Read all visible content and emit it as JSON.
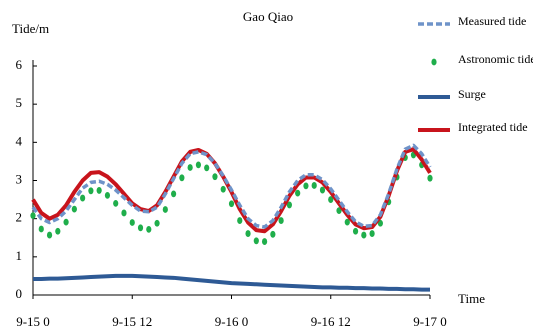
{
  "chart_data": {
    "type": "line",
    "title": "Gao Qiao",
    "y_label": "Tide/m",
    "x_label": "Time",
    "x": [
      0,
      1,
      2,
      3,
      4,
      5,
      6,
      7,
      8,
      9,
      10,
      11,
      12,
      13,
      14,
      15,
      16,
      17,
      18,
      19,
      20,
      21,
      22,
      23,
      24,
      25,
      26,
      27,
      28,
      29,
      30,
      31,
      32,
      33,
      34,
      35,
      36,
      37,
      38,
      39,
      40,
      41,
      42,
      43,
      44,
      45,
      46,
      47,
      48
    ],
    "xlim": [
      0,
      48
    ],
    "xticks": [
      {
        "value": 0,
        "label": "9-15 0"
      },
      {
        "value": 12,
        "label": "9-15 12"
      },
      {
        "value": 24,
        "label": "9-16 0"
      },
      {
        "value": 36,
        "label": "9-16 12"
      },
      {
        "value": 48,
        "label": "9-17 0"
      }
    ],
    "ylim": [
      0,
      6
    ],
    "yticks": [
      0,
      1,
      2,
      3,
      4,
      5,
      6
    ],
    "grid": false,
    "legend": "top-right",
    "series": [
      {
        "name": "Measured tide",
        "color": "#6f93c9",
        "style": "dashed",
        "values": [
          2.3,
          2.0,
          1.9,
          2.0,
          2.2,
          2.5,
          2.8,
          2.95,
          2.98,
          2.9,
          2.75,
          2.55,
          2.35,
          2.2,
          2.18,
          2.3,
          2.65,
          3.05,
          3.45,
          3.7,
          3.75,
          3.68,
          3.45,
          3.12,
          2.75,
          2.35,
          2.0,
          1.82,
          1.78,
          1.95,
          2.3,
          2.7,
          3.0,
          3.15,
          3.15,
          3.02,
          2.78,
          2.48,
          2.18,
          1.92,
          1.8,
          1.82,
          2.1,
          2.65,
          3.3,
          3.82,
          3.92,
          3.7,
          3.35
        ]
      },
      {
        "name": "Astronomic tide",
        "color": "#1fae4b",
        "style": "dots",
        "values": [
          2.08,
          1.73,
          1.57,
          1.67,
          1.91,
          2.25,
          2.54,
          2.73,
          2.74,
          2.61,
          2.4,
          2.15,
          1.9,
          1.76,
          1.72,
          1.88,
          2.24,
          2.65,
          3.07,
          3.34,
          3.41,
          3.33,
          3.1,
          2.77,
          2.39,
          1.95,
          1.61,
          1.42,
          1.4,
          1.59,
          1.95,
          2.36,
          2.67,
          2.86,
          2.87,
          2.75,
          2.5,
          2.21,
          1.91,
          1.67,
          1.57,
          1.61,
          1.88,
          2.44,
          3.09,
          3.6,
          3.67,
          3.41,
          3.06
        ]
      },
      {
        "name": "Surge",
        "color": "#2e5a95",
        "style": "solid",
        "values": [
          0.42,
          0.42,
          0.43,
          0.43,
          0.44,
          0.45,
          0.46,
          0.47,
          0.48,
          0.49,
          0.5,
          0.5,
          0.5,
          0.49,
          0.48,
          0.47,
          0.46,
          0.45,
          0.43,
          0.41,
          0.39,
          0.37,
          0.35,
          0.33,
          0.31,
          0.3,
          0.29,
          0.28,
          0.27,
          0.26,
          0.25,
          0.24,
          0.23,
          0.22,
          0.21,
          0.2,
          0.2,
          0.19,
          0.19,
          0.18,
          0.18,
          0.17,
          0.17,
          0.16,
          0.16,
          0.15,
          0.15,
          0.14,
          0.14
        ]
      },
      {
        "name": "Integrated tide",
        "color": "#c8141c",
        "style": "solid",
        "values": [
          2.5,
          2.15,
          2.0,
          2.1,
          2.35,
          2.7,
          3.0,
          3.2,
          3.22,
          3.1,
          2.9,
          2.65,
          2.4,
          2.25,
          2.2,
          2.35,
          2.7,
          3.1,
          3.5,
          3.75,
          3.8,
          3.7,
          3.45,
          3.1,
          2.7,
          2.25,
          1.9,
          1.7,
          1.67,
          1.85,
          2.2,
          2.6,
          2.9,
          3.08,
          3.08,
          2.95,
          2.7,
          2.4,
          2.1,
          1.85,
          1.75,
          1.78,
          2.05,
          2.6,
          3.25,
          3.75,
          3.82,
          3.55,
          3.2
        ]
      }
    ]
  }
}
